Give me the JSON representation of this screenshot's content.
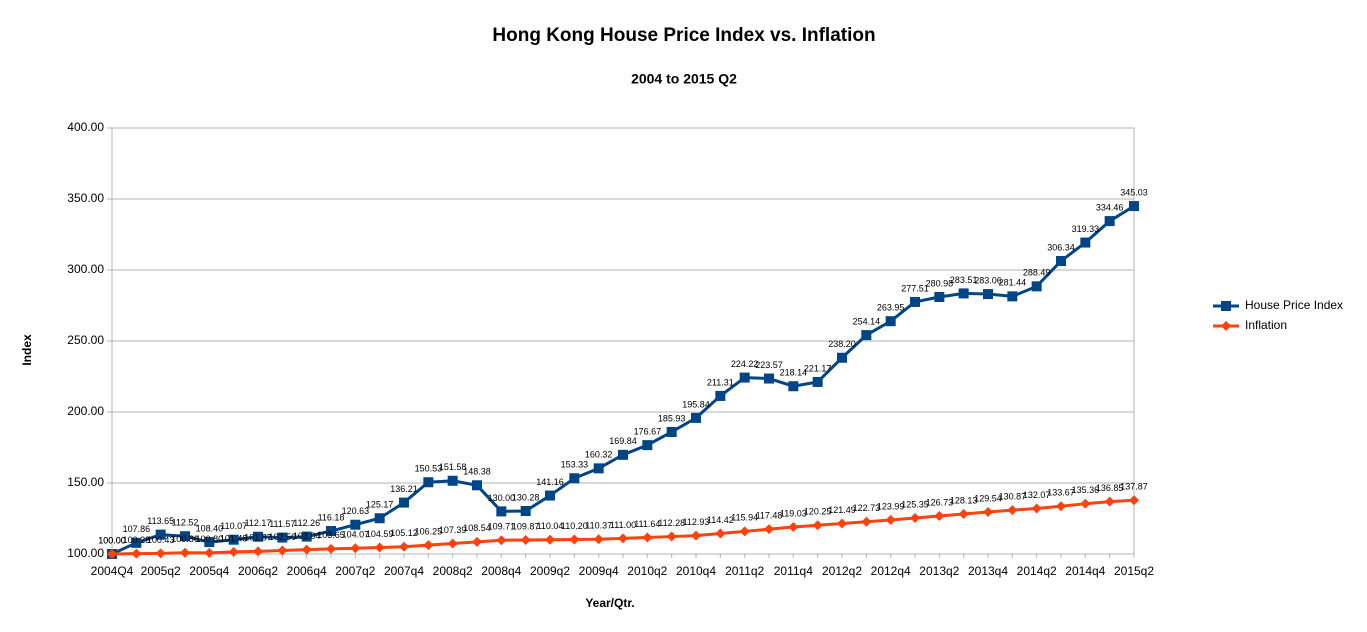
{
  "chart_data": {
    "type": "line",
    "title": "Hong Kong House Price Index vs. Inflation",
    "subtitle": "2004 to 2015 Q2",
    "x_label": "Year/Qtr.",
    "y_label": "Index",
    "categories": [
      "2004Q4",
      null,
      "2005q2",
      null,
      "2005q4",
      null,
      "2006q2",
      null,
      "2006q4",
      null,
      "2007q2",
      null,
      "2007q4",
      null,
      "2008q2",
      null,
      "2008q4",
      null,
      "2009q2",
      null,
      "2009q4",
      null,
      "2010q2",
      null,
      "2010q4",
      null,
      "2011q2",
      null,
      "2011q4",
      null,
      "2012q2",
      null,
      "2012q4",
      null,
      "2013q2",
      null,
      "2013q4",
      null,
      "2014q2",
      null,
      "2014q4",
      null,
      "2015q2"
    ],
    "ylim": [
      100,
      400
    ],
    "yticks": [
      {
        "value": 100,
        "label": "100.00"
      },
      {
        "value": 150,
        "label": "150.00"
      },
      {
        "value": 200,
        "label": "200.00"
      },
      {
        "value": 250,
        "label": "250.00"
      },
      {
        "value": 300,
        "label": "300.00"
      },
      {
        "value": 350,
        "label": "350.00"
      },
      {
        "value": 400,
        "label": "400.00"
      }
    ],
    "grid": true,
    "legend": "right",
    "series": [
      {
        "name": "House Price Index",
        "color": "#004586",
        "marker": "square",
        "values": [
          100,
          107.86,
          113.65,
          112.52,
          108.4,
          110.07,
          112.17,
          111.57,
          112.26,
          116.18,
          120.63,
          125.17,
          136.21,
          150.53,
          151.58,
          148.38,
          130,
          130.28,
          141.16,
          153.33,
          160.32,
          169.84,
          176.67,
          185.93,
          195.84,
          211.31,
          224.22,
          223.57,
          218.14,
          221.17,
          238.2,
          254.14,
          263.95,
          277.51,
          280.98,
          283.51,
          283.06,
          281.44,
          288.49,
          306.34,
          319.33,
          334.46,
          345.03
        ],
        "value_labels": [
          "100.00",
          "107.86",
          "113.65",
          "112.52",
          "108.40",
          "110.07",
          "112.17",
          "111.57",
          "112.26",
          "116.18",
          "120.63",
          "125.17",
          "136.21",
          "150.53",
          "151.58",
          "148.38",
          "130.00",
          "130.28",
          "141.16",
          "153.33",
          "160.32",
          "169.84",
          "176.67",
          "185.93",
          "195.84",
          "211.31",
          "224.22",
          "223.57",
          "218.14",
          "221.17",
          "238.20",
          "254.14",
          "263.95",
          "277.51",
          "280.98",
          "283.51",
          "283.06",
          "281.44",
          "288.49",
          "306.34",
          "319.33",
          "334.46",
          "345.03"
        ]
      },
      {
        "name": "Inflation",
        "color": "#ff420e",
        "marker": "diamond",
        "values": [
          100,
          100.28,
          100.43,
          100.86,
          100.8,
          101.48,
          101.87,
          102.5,
          103.04,
          103.65,
          104.07,
          104.59,
          105.12,
          106.25,
          107.39,
          108.54,
          109.71,
          109.87,
          110.04,
          110.2,
          110.37,
          111,
          111.64,
          112.28,
          112.93,
          114.42,
          115.94,
          117.48,
          119.03,
          120.25,
          121.49,
          122.73,
          123.99,
          125.35,
          126.73,
          128.13,
          129.54,
          130.87,
          132.07,
          133.67,
          135.36,
          136.85,
          137.87
        ],
        "value_labels": [
          "100.00",
          "100.28",
          "100.43",
          "100.86",
          "100.80",
          "101.48",
          "101.87",
          "102.50",
          "103.04",
          "103.65",
          "104.07",
          "104.59",
          "105.12",
          "106.25",
          "107.39",
          "108.54",
          "109.71",
          "109.87",
          "110.04",
          "110.20",
          "110.37",
          "111.00",
          "111.64",
          "112.28",
          "112.93",
          "114.42",
          "115.94",
          "117.48",
          "119.03",
          "120.25",
          "121.49",
          "122.73",
          "123.99",
          "125.35",
          "126.73",
          "128.13",
          "129.54",
          "130.87",
          "132.07",
          "133.67",
          "135.36",
          "136.85",
          "137.87"
        ]
      }
    ]
  }
}
